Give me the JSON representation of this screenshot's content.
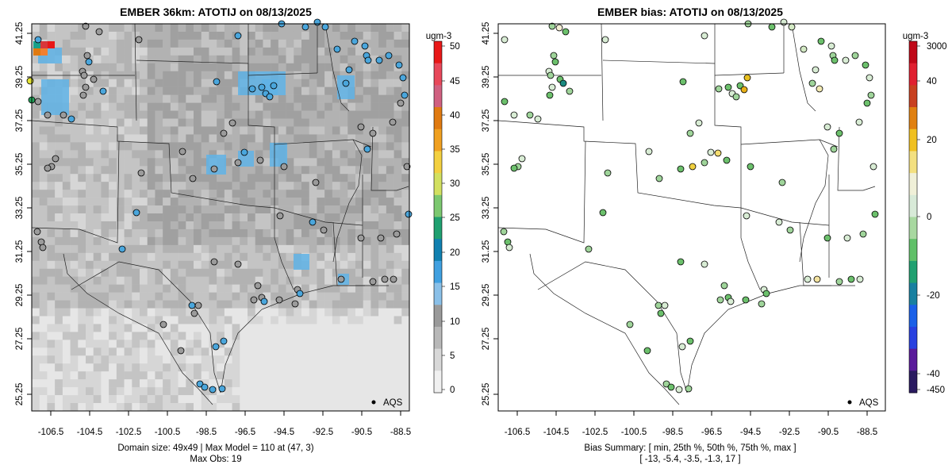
{
  "left": {
    "title": "EMBER 36km: ATOTIJ on 08/13/2025",
    "footer_line1": "Domain size: 49x49 | Max Model = 110 at (47, 3)",
    "footer_line2": "Max Obs: 19",
    "legend_label": "AQS",
    "colorbar": {
      "unit": "ugm-3",
      "ticks": [
        "50",
        "45",
        "40",
        "35",
        "30",
        "25",
        "20",
        "15",
        "10",
        "5",
        "0"
      ]
    }
  },
  "right": {
    "title": "EMBER bias: ATOTIJ on 08/13/2025",
    "footer_line1": "Bias Summary: [ min, 25th %, 50th %, 75th %, max ]",
    "footer_line2": "[ -13,   -5.4,   -3.5,   -1.3,   17 ]",
    "legend_label": "AQS",
    "colorbar": {
      "unit": "ugm-3",
      "ticks": [
        "3000",
        "40",
        "20",
        "0",
        "-20",
        "-40",
        "-450"
      ]
    }
  },
  "axes": {
    "x_ticks": [
      "-106.5",
      "-104.5",
      "-102.5",
      "-100.5",
      "-98.5",
      "-96.5",
      "-94.5",
      "-92.5",
      "-90.5",
      "-88.5"
    ],
    "y_ticks": [
      "41.25",
      "39.25",
      "37.25",
      "35.25",
      "33.25",
      "31.25",
      "29.25",
      "27.25",
      "25.25"
    ]
  },
  "colors": {
    "model_low": "#e4e4e4",
    "model_mid": "#9a9a9a",
    "model_high": "#4aa8e0",
    "bias_neutral": "#d8ead8",
    "bias_green": "#6cc06c"
  }
}
